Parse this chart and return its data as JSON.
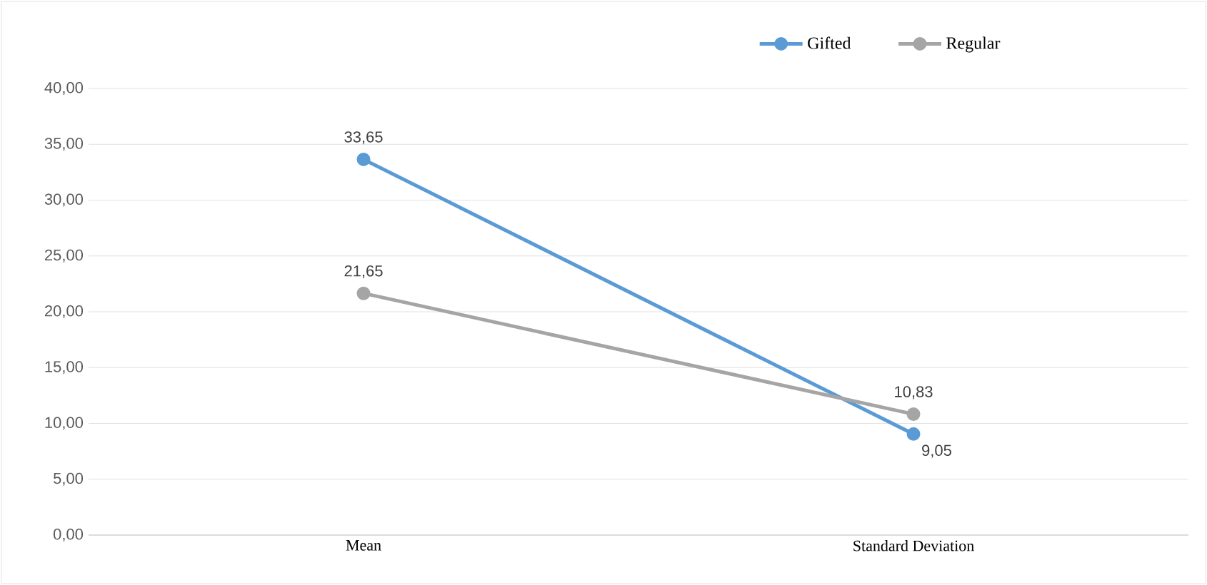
{
  "chart_data": {
    "type": "line",
    "categories": [
      "Mean",
      "Standard Deviation"
    ],
    "series": [
      {
        "name": "Gifted",
        "color": "#5b9bd5",
        "values": [
          33.65,
          9.05
        ],
        "value_labels": [
          "33,65",
          "9,05"
        ]
      },
      {
        "name": "Regular",
        "color": "#a5a5a5",
        "values": [
          21.65,
          10.83
        ],
        "value_labels": [
          "21,65",
          "10,83"
        ]
      }
    ],
    "ylim": [
      0,
      40
    ],
    "yticks": [
      {
        "value": 0,
        "label": "0,00"
      },
      {
        "value": 5,
        "label": "5,00"
      },
      {
        "value": 10,
        "label": "10,00"
      },
      {
        "value": 15,
        "label": "15,00"
      },
      {
        "value": 20,
        "label": "20,00"
      },
      {
        "value": 25,
        "label": "25,00"
      },
      {
        "value": 30,
        "label": "30,00"
      },
      {
        "value": 35,
        "label": "35,00"
      },
      {
        "value": 40,
        "label": "40,00"
      }
    ],
    "grid": "y",
    "legend": "top right",
    "marker": "circle",
    "line_style": "solid"
  }
}
